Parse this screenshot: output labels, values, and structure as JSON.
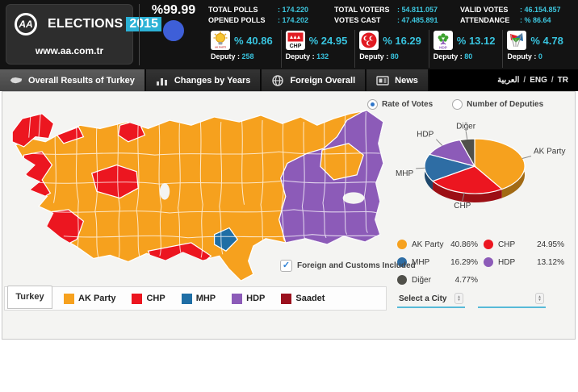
{
  "header": {
    "logo": "AA",
    "brand": "ELECTIONS",
    "year": "2015",
    "site": "www.aa.com.tr",
    "opened_percent": "%99.99",
    "stats": [
      {
        "label": "TOTAL POLLS",
        "value": ": 174.220"
      },
      {
        "label": "TOTAL VOTERS",
        "value": ": 54.811.057"
      },
      {
        "label": "VALID VOTES",
        "value": ": 46.154.857"
      },
      {
        "label": "OPENED POLLS",
        "value": ": 174.202"
      },
      {
        "label": "VOTES CAST",
        "value": ": 47.485.891"
      },
      {
        "label": "ATTENDANCE",
        "value": ": % 86.64"
      }
    ],
    "deputy_label": "Deputy :",
    "parties": [
      {
        "icon": "ak-party-bulb-icon",
        "percent": "% 40.86",
        "deputy": "258"
      },
      {
        "icon": "chp-icon",
        "percent": "% 24.95",
        "deputy": "132"
      },
      {
        "icon": "mhp-crescents-icon",
        "percent": "% 16.29",
        "deputy": "80"
      },
      {
        "icon": "hdp-tree-icon",
        "percent": "% 13.12",
        "deputy": "80"
      },
      {
        "icon": "saadet-flags-icon",
        "percent": "% 4.78",
        "deputy": "0"
      }
    ]
  },
  "nav": {
    "items": [
      {
        "label": "Overall Results of Turkey",
        "icon": "turkey-map-icon",
        "active": true
      },
      {
        "label": "Changes by Years",
        "icon": "bar-chart-icon",
        "active": false
      },
      {
        "label": "Foreign Overall",
        "icon": "globe-icon",
        "active": false
      },
      {
        "label": "News",
        "icon": "news-icon",
        "active": false
      }
    ],
    "languages": [
      "العربية",
      "ENG",
      "TR"
    ]
  },
  "controls": {
    "rate_of_votes": "Rate of Votes",
    "number_of_deputies": "Number of Deputies",
    "foreign_included": "Foreign and Customs Included",
    "select_city_placeholder": "Select a City",
    "select_city_value_2": ""
  },
  "map_legend": {
    "tab": "Turkey",
    "items": [
      {
        "label": "AK Party",
        "color": "#F6A11E"
      },
      {
        "label": "CHP",
        "color": "#EC1620"
      },
      {
        "label": "MHP",
        "color": "#1F6EA5"
      },
      {
        "label": "HDP",
        "color": "#8C5BB8"
      },
      {
        "label": "Saadet",
        "color": "#9B111E"
      }
    ]
  },
  "chart_data": {
    "type": "pie",
    "title": "Rate of Votes",
    "labels": [
      "AK Party",
      "CHP",
      "MHP",
      "HDP",
      "Diğer"
    ],
    "values": [
      40.86,
      24.95,
      16.29,
      13.12,
      4.77
    ],
    "colors": [
      "#F6A11E",
      "#EC1620",
      "#2E6DA4",
      "#8C5BB8",
      "#50504A"
    ],
    "legend": [
      {
        "label": "AK Party",
        "pct": "40.86%"
      },
      {
        "label": "CHP",
        "pct": "24.95%"
      },
      {
        "label": "MHP",
        "pct": "16.29%"
      },
      {
        "label": "HDP",
        "pct": "13.12%"
      },
      {
        "label": "Diğer",
        "pct": "4.77%"
      }
    ]
  }
}
